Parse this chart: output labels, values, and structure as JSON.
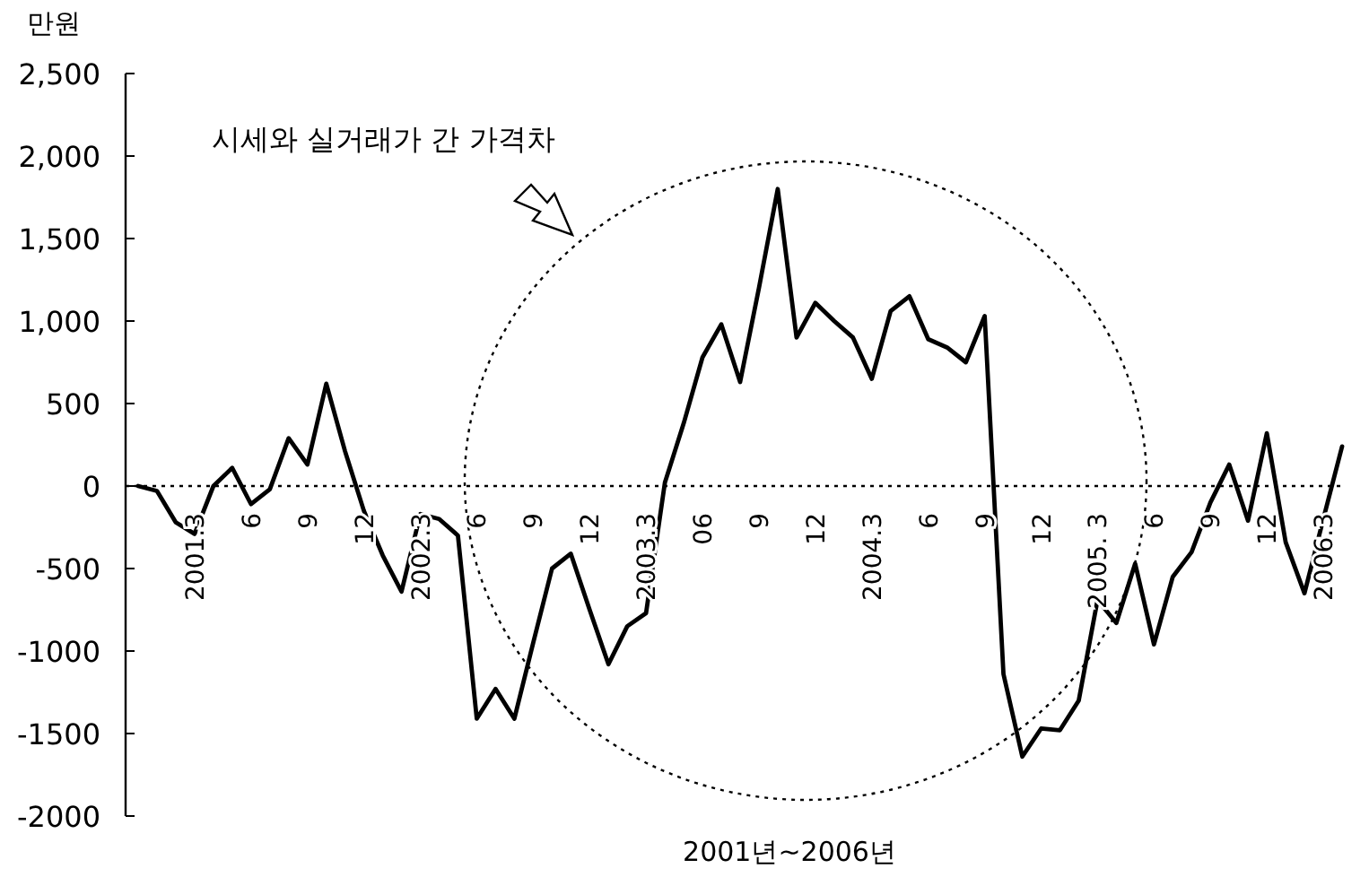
{
  "chart_data": {
    "type": "line",
    "xlabel": "2001년~2006년",
    "ylabel": "만원",
    "annotations": [
      "시세와 실거래가 간 가격차"
    ],
    "categories": [
      null,
      null,
      null,
      "2001.3",
      null,
      null,
      "6",
      null,
      null,
      "9",
      null,
      null,
      "12",
      null,
      null,
      "2002.3",
      null,
      null,
      "6",
      null,
      null,
      "9",
      null,
      null,
      "12",
      null,
      null,
      "2003.3",
      null,
      null,
      "06",
      null,
      null,
      "9",
      null,
      null,
      "12",
      null,
      null,
      "2004.3",
      null,
      null,
      "6",
      null,
      null,
      "9",
      null,
      null,
      "12",
      null,
      null,
      "2005. 3",
      null,
      null,
      "6",
      null,
      null,
      "9",
      null,
      null,
      "12",
      null,
      null,
      "2006.3",
      null
    ],
    "values": [
      0,
      -30,
      -220,
      -290,
      0,
      110,
      -110,
      -20,
      290,
      130,
      620,
      210,
      -150,
      -420,
      -640,
      -170,
      -200,
      -300,
      -1410,
      -1230,
      -1410,
      -950,
      -500,
      -410,
      -750,
      -1080,
      -850,
      -770,
      20,
      380,
      780,
      980,
      630,
      1200,
      1800,
      900,
      1110,
      1000,
      900,
      650,
      1060,
      1150,
      890,
      840,
      750,
      1030,
      -1140,
      -1640,
      -1470,
      -1480,
      -1300,
      -690,
      -830,
      -470,
      -960,
      -550,
      -400,
      -100,
      130,
      -210,
      320,
      -340,
      -650,
      -200,
      240
    ],
    "color": "#000000",
    "ylim": [
      -2000,
      2500
    ],
    "yticks": [
      {
        "value": 2500,
        "label": "2,500"
      },
      {
        "value": 2000,
        "label": "2,000"
      },
      {
        "value": 1500,
        "label": "1,500"
      },
      {
        "value": 1000,
        "label": "1,000"
      },
      {
        "value": 500,
        "label": "500"
      },
      {
        "value": 0,
        "label": "0"
      },
      {
        "value": -500,
        "label": "-500"
      },
      {
        "value": -1000,
        "label": "-1000"
      },
      {
        "value": -1500,
        "label": "-1500"
      },
      {
        "value": -2000,
        "label": "-2000"
      }
    ],
    "ref_lines": [
      {
        "axis": "y",
        "value": 0,
        "line_style": "dotted"
      }
    ]
  }
}
